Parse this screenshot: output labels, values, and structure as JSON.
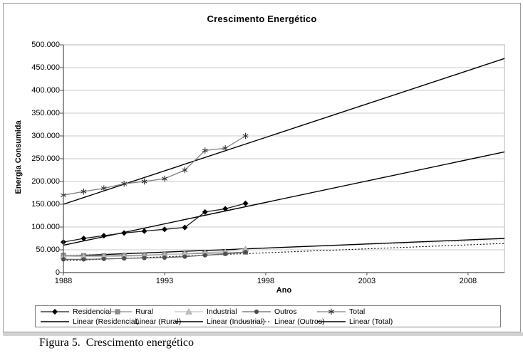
{
  "figure": {
    "caption": "Figura 5.  Crescimento energético"
  },
  "chart_data": {
    "type": "line",
    "title": "Crescimento Energético",
    "xlabel": "Ano",
    "ylabel": "Energia Consumida",
    "x": [
      1988,
      1989,
      1990,
      1991,
      1992,
      1993,
      1994,
      1995,
      1996,
      1997
    ],
    "xlim": [
      1988,
      2009.8
    ],
    "ylim": [
      0,
      500000
    ],
    "x_ticks": [
      {
        "label": "1988",
        "year": 1988
      },
      {
        "label": "1993",
        "year": 1993
      },
      {
        "label": "1998",
        "year": 1998
      },
      {
        "label": "2003",
        "year": 2003
      },
      {
        "label": "2008",
        "year": 2008
      }
    ],
    "y_ticks": [
      "500.000",
      "450.000",
      "400.000",
      "350.000",
      "300.000",
      "250.000",
      "200.000",
      "150.000",
      "100.000",
      "50.000",
      "0"
    ],
    "y_tick_step": 50000,
    "grid": "horizontal",
    "legend_position": "bottom",
    "series": [
      {
        "name": "Residencial",
        "marker": "diamond",
        "line_color": "#1a1a1a",
        "marker_color": "#000000",
        "values": [
          67000,
          75000,
          81000,
          87000,
          91000,
          95000,
          99000,
          133000,
          140000,
          152000
        ]
      },
      {
        "name": "Rural",
        "marker": "square",
        "line_color": "#8c8c8c",
        "marker_color": "#8c8c8c",
        "values": [
          38000,
          37000,
          37000,
          38000,
          38000,
          40000,
          41000,
          42000,
          43000,
          45000
        ]
      },
      {
        "name": "Industrial",
        "marker": "triangle",
        "line_color": "#c0c0c0",
        "marker_color": "#c0c0c0",
        "values": [
          36000,
          35000,
          35000,
          36000,
          37000,
          39000,
          42000,
          44000,
          46000,
          52000
        ]
      },
      {
        "name": "Outros",
        "marker": "circle",
        "line_color": "#666666",
        "marker_color": "#4d4d4d",
        "values": [
          29000,
          29000,
          30000,
          31000,
          32000,
          33000,
          35000,
          38000,
          41000,
          45000
        ]
      },
      {
        "name": "Total",
        "marker": "asterisk",
        "line_color": "#808080",
        "marker_color": "#333333",
        "values": [
          170000,
          178000,
          185000,
          195000,
          200000,
          206000,
          225000,
          268000,
          273000,
          300000
        ]
      }
    ],
    "trendlines": [
      {
        "name": "Linear (Residencial)",
        "style": "solid",
        "color": "#000000",
        "start": [
          1988,
          60000
        ],
        "end": [
          2009.8,
          265000
        ]
      },
      {
        "name": "Linear (Rural)",
        "style": "dotted",
        "color": "#c8c8c8",
        "start": [
          1988,
          38000
        ],
        "end": [
          2009.8,
          72000
        ]
      },
      {
        "name": "Linear (Industrial)",
        "style": "solid",
        "color": "#000000",
        "start": [
          1988,
          36000
        ],
        "end": [
          2009.8,
          75000
        ]
      },
      {
        "name": "Linear (Outros)",
        "style": "dotted",
        "color": "#000000",
        "start": [
          1988,
          26000
        ],
        "end": [
          2009.8,
          64000
        ]
      },
      {
        "name": "Linear (Total)",
        "style": "solid",
        "color": "#000000",
        "start": [
          1988,
          150000
        ],
        "end": [
          2009.8,
          470000
        ]
      }
    ],
    "colors": {
      "gridline": "#c9c9c9",
      "plot_border": "#b3b3b3",
      "axis": "#4d4d4d",
      "figure_border": "#9a9a9a",
      "legend_border": "#808080",
      "shadow": "#d2d2d2"
    }
  }
}
